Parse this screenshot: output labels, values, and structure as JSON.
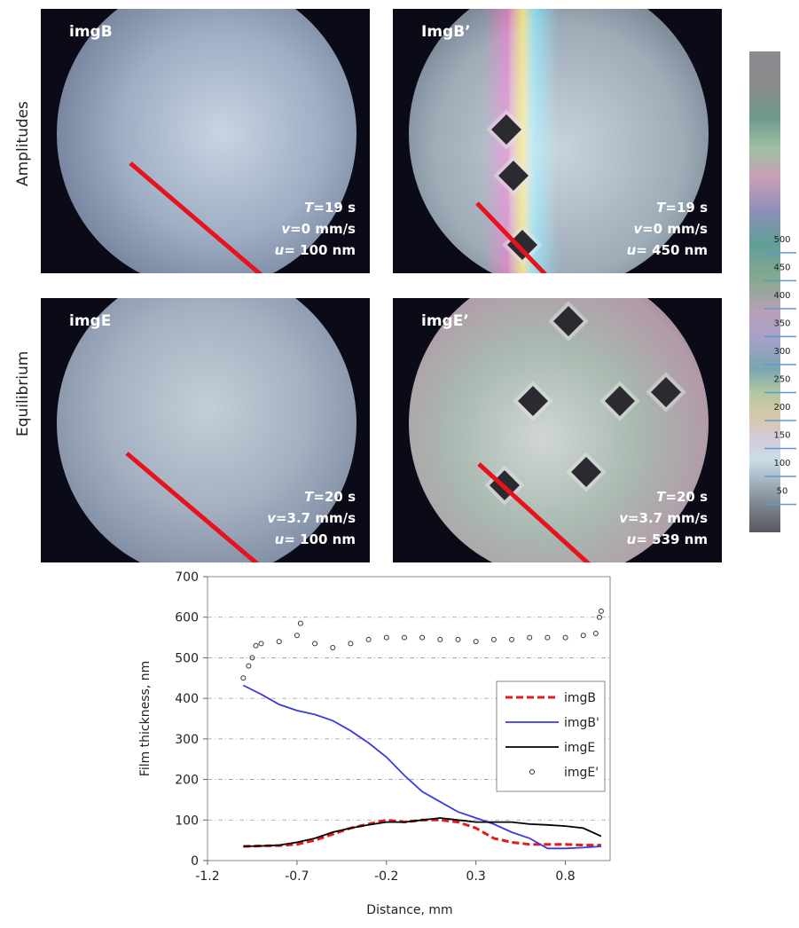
{
  "row_labels": [
    "Amplitudes",
    "Equilibrium"
  ],
  "panels": [
    {
      "title": "imgB",
      "lines": [
        {
          "var": "T",
          "text": "=19 s"
        },
        {
          "var": "v",
          "text": "=0 mm/s"
        },
        {
          "var": "u",
          "text": "= 100 nm"
        }
      ]
    },
    {
      "title": "ImgB’",
      "lines": [
        {
          "var": "T",
          "text": "=19 s"
        },
        {
          "var": "v",
          "text": "=0 mm/s"
        },
        {
          "var": "u",
          "text": "= 450 nm"
        }
      ]
    },
    {
      "title": "imgE",
      "lines": [
        {
          "var": "T",
          "text": "=20 s"
        },
        {
          "var": "v",
          "text": "=3.7 mm/s"
        },
        {
          "var": "u",
          "text": "= 100 nm"
        }
      ]
    },
    {
      "title": "imgE’",
      "lines": [
        {
          "var": "T",
          "text": "=20 s"
        },
        {
          "var": "v",
          "text": "=3.7 mm/s"
        },
        {
          "var": "u",
          "text": "= 539 nm"
        }
      ]
    }
  ],
  "color_scale": {
    "lim": [
      0,
      860
    ],
    "ticks": [
      50,
      100,
      150,
      200,
      250,
      300,
      350,
      400,
      450,
      500
    ]
  },
  "chart_data": {
    "type": "line",
    "x_label": "Distance, mm",
    "y_label": "Film thickness, nm",
    "xlim": [
      -1.2,
      1.05
    ],
    "xticks": [
      -1.2,
      -0.7,
      -0.2,
      0.3,
      0.8
    ],
    "ylim": [
      0,
      700
    ],
    "yticks": [
      0,
      100,
      200,
      300,
      400,
      500,
      600,
      700
    ],
    "grid": true,
    "series": [
      {
        "name": "imgB",
        "color": "#e41a1c",
        "dashed": true,
        "line": true,
        "x": [
          -1.0,
          -0.9,
          -0.8,
          -0.7,
          -0.6,
          -0.5,
          -0.4,
          -0.3,
          -0.2,
          -0.1,
          0.0,
          0.1,
          0.2,
          0.3,
          0.4,
          0.5,
          0.6,
          0.7,
          0.8,
          0.9,
          1.0
        ],
        "values": [
          35,
          36,
          37,
          40,
          50,
          65,
          80,
          90,
          100,
          95,
          100,
          100,
          95,
          80,
          55,
          45,
          40,
          40,
          40,
          38,
          38
        ]
      },
      {
        "name": "imgB'",
        "color": "#3a3ae0",
        "line": true,
        "x": [
          -1.0,
          -0.9,
          -0.8,
          -0.7,
          -0.6,
          -0.5,
          -0.4,
          -0.3,
          -0.2,
          -0.1,
          0.0,
          0.1,
          0.2,
          0.3,
          0.4,
          0.5,
          0.6,
          0.7,
          0.8,
          0.9,
          1.0
        ],
        "values": [
          432,
          410,
          385,
          370,
          360,
          345,
          320,
          290,
          255,
          210,
          170,
          145,
          120,
          105,
          90,
          70,
          55,
          30,
          30,
          32,
          35
        ]
      },
      {
        "name": "imgE",
        "color": "#000000",
        "line": true,
        "x": [
          -1.0,
          -0.9,
          -0.8,
          -0.7,
          -0.6,
          -0.5,
          -0.4,
          -0.3,
          -0.2,
          -0.1,
          0.0,
          0.1,
          0.2,
          0.3,
          0.4,
          0.5,
          0.6,
          0.7,
          0.8,
          0.9,
          1.0
        ],
        "values": [
          35,
          36,
          38,
          45,
          55,
          70,
          80,
          88,
          95,
          95,
          100,
          105,
          100,
          95,
          95,
          95,
          90,
          88,
          85,
          80,
          60
        ]
      },
      {
        "name": "imgE'",
        "color": "#333333",
        "line": false,
        "marker": "circle",
        "x": [
          -1.0,
          -0.97,
          -0.95,
          -0.93,
          -0.9,
          -0.8,
          -0.7,
          -0.68,
          -0.6,
          -0.5,
          -0.4,
          -0.3,
          -0.2,
          -0.1,
          0.0,
          0.1,
          0.2,
          0.3,
          0.4,
          0.5,
          0.6,
          0.7,
          0.8,
          0.9,
          0.97,
          0.99,
          1.0
        ],
        "values": [
          450,
          480,
          500,
          530,
          535,
          540,
          555,
          585,
          535,
          525,
          535,
          545,
          550,
          550,
          550,
          545,
          545,
          540,
          545,
          545,
          550,
          550,
          550,
          555,
          560,
          600,
          615
        ]
      }
    ]
  }
}
